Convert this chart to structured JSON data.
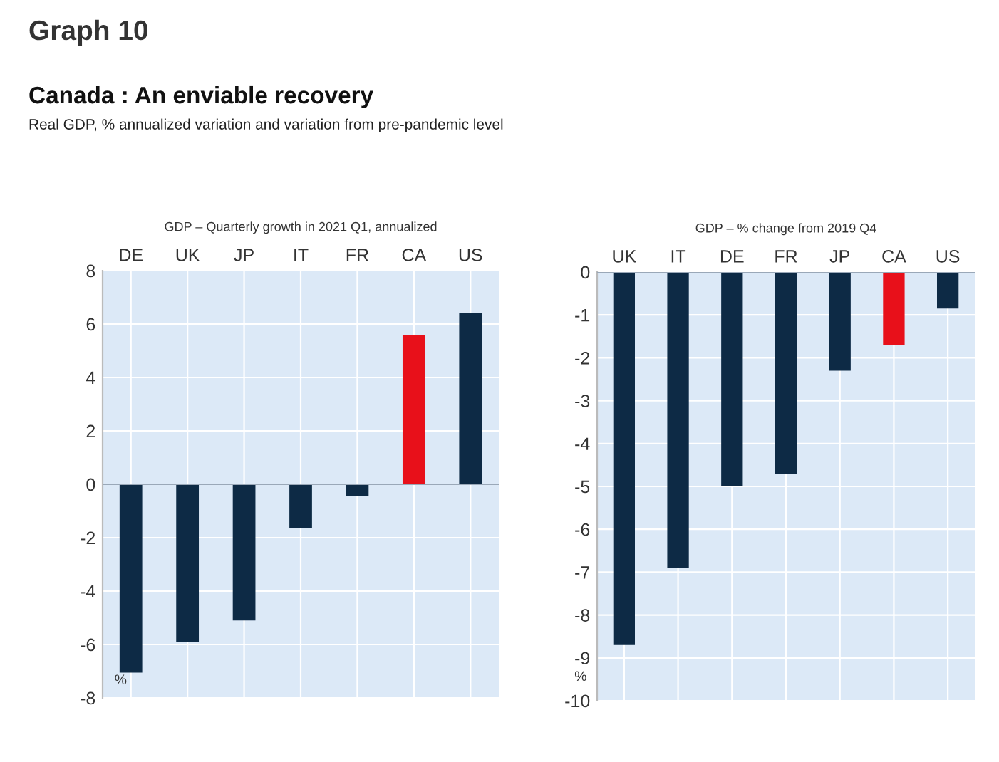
{
  "chart_data": [
    {
      "type": "bar",
      "title": "GDP – Quarterly growth in 2021 Q1, annualized",
      "ylabel": "%",
      "annotations": [
        "Graph 10",
        "Canada : An enviable recovery",
        "Real GDP, % annualized variation and variation from pre-pandemic level"
      ],
      "categories": [
        "DE",
        "UK",
        "JP",
        "IT",
        "FR",
        "CA",
        "US"
      ],
      "values": [
        -7.05,
        -5.9,
        -5.1,
        -1.65,
        -0.45,
        5.6,
        6.4
      ],
      "colors": [
        "#0d2a45",
        "#0d2a45",
        "#0d2a45",
        "#0d2a45",
        "#0d2a45",
        "#e8101a",
        "#0d2a45"
      ],
      "ylim": [
        -8,
        8
      ],
      "yticks": [
        -8,
        -6,
        -4,
        -2,
        0,
        2,
        4,
        6,
        8
      ],
      "grid": true
    },
    {
      "type": "bar",
      "title": "GDP – % change from 2019 Q4",
      "ylabel": "%",
      "categories": [
        "UK",
        "IT",
        "DE",
        "FR",
        "JP",
        "CA",
        "US"
      ],
      "values": [
        -8.7,
        -6.9,
        -5.0,
        -4.7,
        -2.3,
        -1.7,
        -0.85
      ],
      "colors": [
        "#0d2a45",
        "#0d2a45",
        "#0d2a45",
        "#0d2a45",
        "#0d2a45",
        "#e8101a",
        "#0d2a45"
      ],
      "ylim": [
        -10,
        0
      ],
      "yticks": [
        -10,
        -9,
        -8,
        -7,
        -6,
        -5,
        -4,
        -3,
        -2,
        -1,
        0
      ],
      "grid": true
    }
  ]
}
